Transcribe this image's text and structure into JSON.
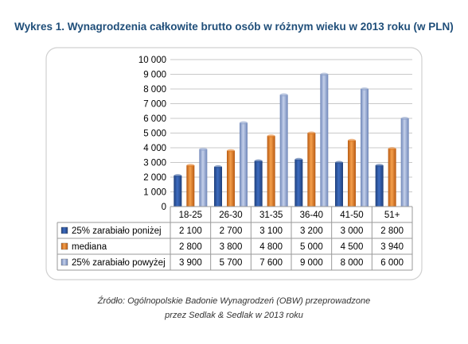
{
  "title": "Wykres 1. Wynagrodzenia całkowite brutto osób w różnym wieku w 2013 roku (w PLN)",
  "source": {
    "line1": "Źródło: Ogólnopolskie Badonie Wynagrodzeń (OBW) przeprowadzone",
    "line2": "przez Sedlak & Sedlak w 2013 roku"
  },
  "chart_data": {
    "type": "bar",
    "categories": [
      "18-25",
      "26-30",
      "31-35",
      "36-40",
      "41-50",
      "51+"
    ],
    "series": [
      {
        "name": "25% zarabiało poniżej",
        "values": [
          2100,
          2700,
          3100,
          3200,
          3000,
          2800
        ],
        "color": "#2f5597",
        "labels": [
          "2 100",
          "2 700",
          "3 100",
          "3 200",
          "3 000",
          "2 800"
        ]
      },
      {
        "name": "mediana",
        "values": [
          2800,
          3800,
          4800,
          5000,
          4500,
          3940
        ],
        "color": "#e07b24",
        "labels": [
          "2 800",
          "3 800",
          "4 800",
          "5 000",
          "4 500",
          "3 940"
        ]
      },
      {
        "name": "25% zarabiało powyżej",
        "values": [
          3900,
          5700,
          7600,
          9000,
          8000,
          6000
        ],
        "color": "#8ea2cc",
        "labels": [
          "3 900",
          "5 700",
          "7 600",
          "9 000",
          "8 000",
          "6 000"
        ]
      }
    ],
    "ylim": [
      0,
      10000
    ],
    "yticks": [
      0,
      1000,
      2000,
      3000,
      4000,
      5000,
      6000,
      7000,
      8000,
      9000,
      10000
    ],
    "ytick_labels": [
      "0",
      "1 000",
      "2 000",
      "3 000",
      "4 000",
      "5 000",
      "6 000",
      "7 000",
      "8 000",
      "9 000",
      "10 000"
    ],
    "grid": true,
    "legend": "data table below chart"
  }
}
